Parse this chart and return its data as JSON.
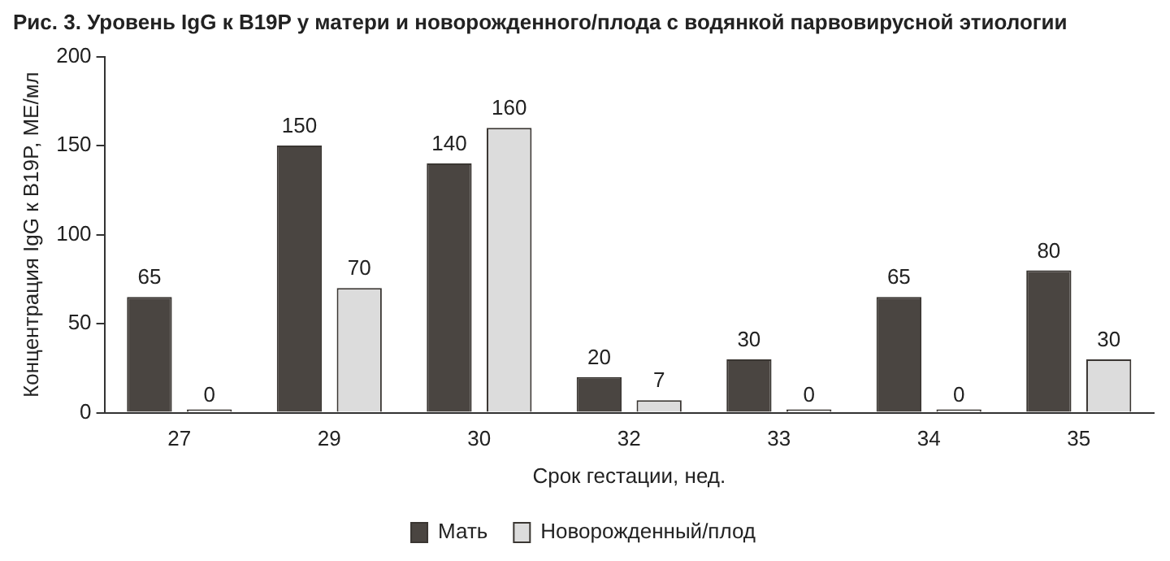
{
  "chart_data": {
    "type": "bar",
    "title": "Рис. 3. Уровень IgG к B19P у матери и новорожденного/плода с водянкой парвовирусной этиологии",
    "xlabel": "Срок гестации, нед.",
    "ylabel": "Концентрация IgG к B19P, МЕ/мл",
    "categories": [
      "27",
      "29",
      "30",
      "32",
      "33",
      "34",
      "35"
    ],
    "series": [
      {
        "name": "Мать",
        "color": "#4a4541",
        "values": [
          65,
          150,
          140,
          20,
          30,
          65,
          80
        ]
      },
      {
        "name": "Новорожденный/плод",
        "color": "#dcdcdc",
        "values": [
          0,
          70,
          160,
          7,
          0,
          0,
          30
        ]
      }
    ],
    "ylim": [
      0,
      200
    ],
    "yticks": [
      0,
      50,
      100,
      150,
      200
    ],
    "grid": false,
    "legend": "bottom",
    "data_labels": true
  }
}
